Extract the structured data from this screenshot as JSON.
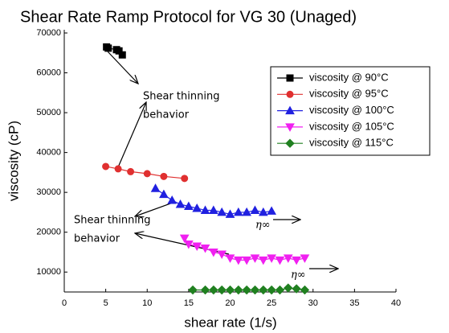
{
  "chart_data": {
    "type": "scatter",
    "title": "Shear Rate Ramp Protocol for VG 30 (Unaged)",
    "xlabel": "shear rate (1/s)",
    "ylabel": "viscosity (cP)",
    "xlim": [
      0,
      40
    ],
    "xticks": [
      0,
      5,
      10,
      15,
      20,
      25,
      30,
      35,
      40
    ],
    "ylim": [
      5000,
      70000
    ],
    "yticks": [
      10000,
      20000,
      30000,
      40000,
      50000,
      60000,
      70000
    ],
    "legend": "upper right",
    "annotations": [
      [
        "Shear thinning",
        "behavior"
      ],
      [
        "Shear thinning",
        "behavior"
      ],
      "η∞",
      "η∞"
    ],
    "series": [
      {
        "name": "viscosity @ 90°C",
        "color": "#000000",
        "marker": "square",
        "x": [
          5.1,
          5.3,
          6.3,
          6.6,
          7.0
        ],
        "values": [
          66500,
          66200,
          65800,
          65500,
          64500
        ]
      },
      {
        "name": "viscosity @ 95°C",
        "color": "#e03030",
        "marker": "circle",
        "x": [
          5,
          6.5,
          8,
          10,
          12,
          14.5
        ],
        "values": [
          36500,
          35900,
          35200,
          34700,
          34000,
          33500
        ]
      },
      {
        "name": "viscosity @ 100°C",
        "color": "#2020e0",
        "marker": "triangle-up",
        "x": [
          11,
          12,
          13,
          14,
          15,
          16,
          17,
          18,
          19,
          20,
          21,
          22,
          23,
          24,
          25
        ],
        "values": [
          31000,
          29500,
          28000,
          27000,
          26500,
          26000,
          25500,
          25500,
          25000,
          24500,
          25000,
          25000,
          25500,
          25000,
          25300
        ]
      },
      {
        "name": "viscosity @ 105°C",
        "color": "#f020f0",
        "marker": "triangle-down",
        "x": [
          14.5,
          15,
          16,
          17,
          18,
          19,
          20,
          21,
          22,
          23,
          24,
          25,
          26,
          27,
          28,
          29
        ],
        "values": [
          18500,
          17000,
          16500,
          16000,
          15000,
          14500,
          13500,
          13000,
          13000,
          13500,
          13000,
          13500,
          13000,
          13500,
          13000,
          13500
        ]
      },
      {
        "name": "viscosity @ 115°C",
        "color": "#208020",
        "marker": "diamond",
        "x": [
          15.5,
          17,
          18,
          19,
          20,
          21,
          22,
          23,
          24,
          25,
          26,
          27,
          28,
          29
        ],
        "values": [
          5500,
          5500,
          5500,
          5500,
          5500,
          5500,
          5500,
          5500,
          5500,
          5500,
          5500,
          6000,
          5800,
          5500
        ]
      }
    ]
  }
}
